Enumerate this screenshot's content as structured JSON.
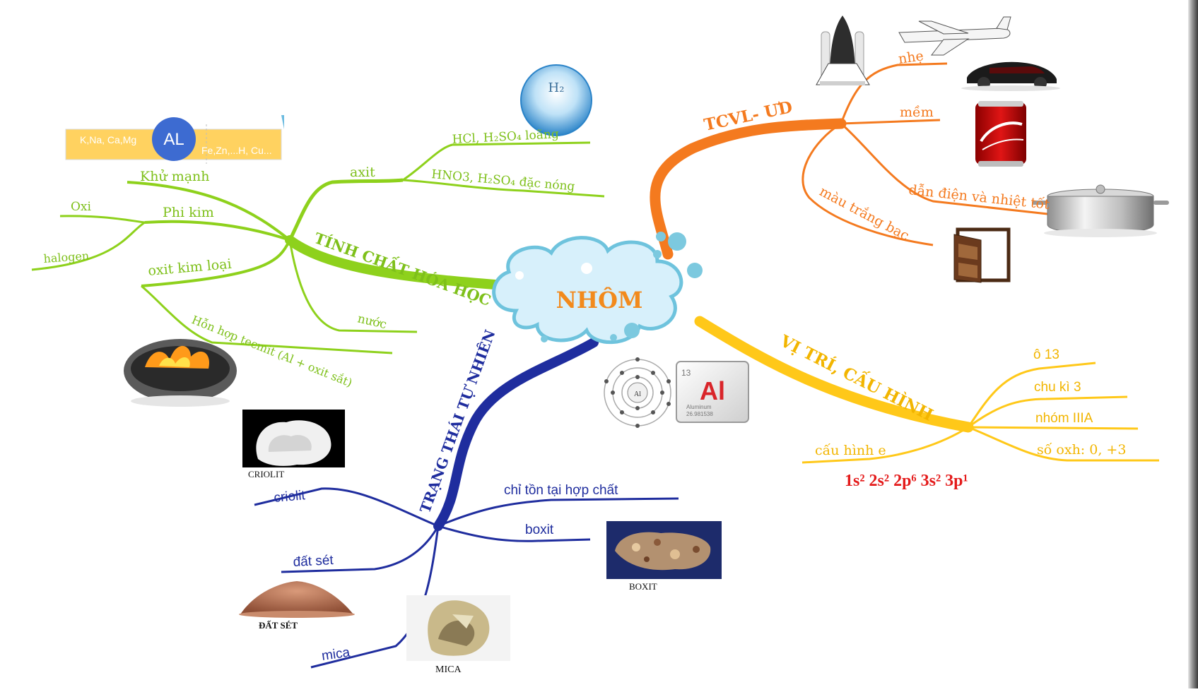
{
  "center": {
    "title": "NHÔM"
  },
  "branches": {
    "chem": {
      "label": "TÍNH CHẤT HÓA HỌC",
      "color": "#8ed11c",
      "items": {
        "axit": "axit",
        "hcl": "HCl, H₂SO₄ loãng",
        "hno3": "HNO3, H₂SO₄ đặc nóng",
        "khu": "Khử mạnh",
        "phikim": "Phi kim",
        "oxi": "Oxi",
        "halogen": "halogen",
        "oxit": "oxit kim loại",
        "nuoc": "nước",
        "tecmit": "Hỗn hợp tecmit (Al + oxit sắt)"
      },
      "series": {
        "left": "K,Na, Ca,Mg",
        "right": "Fe,Zn,...H, Cu...",
        "center": "AL"
      },
      "h2_label": "H₂"
    },
    "phys": {
      "label": "TCVL- ƯD",
      "color": "#f47a1f",
      "items": {
        "nhe": "nhẹ",
        "mem": "mềm",
        "dan": "dẫn điện và nhiệt tốt",
        "mau": "màu trắng bạc"
      }
    },
    "pos": {
      "label": "VỊ TRÍ, CẤU HÌNH",
      "color": "#ffc819",
      "items": {
        "o13": "ô 13",
        "chuki": "chu kì 3",
        "nhom": "nhóm IIIA",
        "oxh": "số oxh: 0, +3",
        "cauhinh": "cấu hình e"
      },
      "config": "1s² 2s² 2p⁶ 3s² 3p¹"
    },
    "nature": {
      "label": "TRẠNG THÁI TỰ NHIÊN",
      "color": "#1f2d9e",
      "items": {
        "chiton": "chỉ tồn tại hợp chất",
        "criolit": "criolit",
        "boxit": "boxit",
        "datset": "đất sét",
        "mica": "mica"
      },
      "captions": {
        "criolit": "CRIOLIT",
        "boxit": "BOXIT",
        "datset": "ĐẤT SÉT",
        "mica": "MICA"
      }
    }
  },
  "element_tile": {
    "number": "13",
    "symbol": "Al",
    "name": "Aluminum",
    "mass": "26.981538",
    "atom_label": "Al"
  }
}
